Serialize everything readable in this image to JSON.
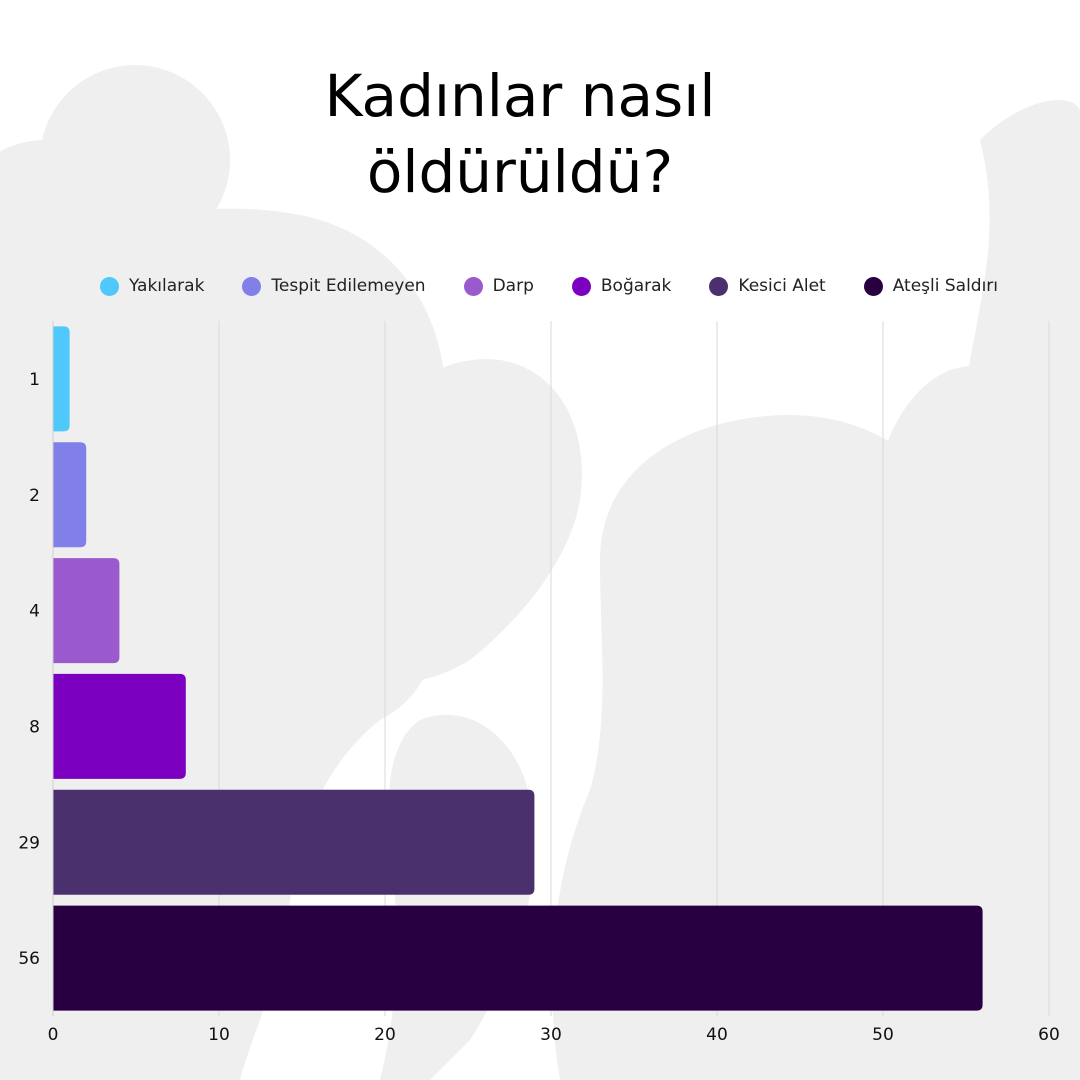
{
  "chart_data": {
    "type": "bar",
    "orientation": "horizontal",
    "title": "Kadınlar nasıl öldürüldü?",
    "title_lines": [
      "Kadınlar nasıl",
      "öldürüldü?"
    ],
    "categories": [
      "1",
      "2",
      "4",
      "8",
      "29",
      "56"
    ],
    "values": [
      1,
      2,
      4,
      8,
      29,
      56
    ],
    "colors": [
      "#4fc8fb",
      "#8080e8",
      "#9a5acd",
      "#7b00c0",
      "#4a306c",
      "#280042"
    ],
    "legend": [
      "Yakılarak",
      "Tespit Edilemeyen",
      "Darp",
      "Boğarak",
      "Kesici Alet",
      "Ateşli Saldırı"
    ],
    "legend_position": "top",
    "xlim": [
      0,
      60
    ],
    "x_ticks": [
      0,
      10,
      20,
      30,
      40,
      50,
      60
    ],
    "grid": "vertical",
    "xlabel": "",
    "ylabel": ""
  }
}
